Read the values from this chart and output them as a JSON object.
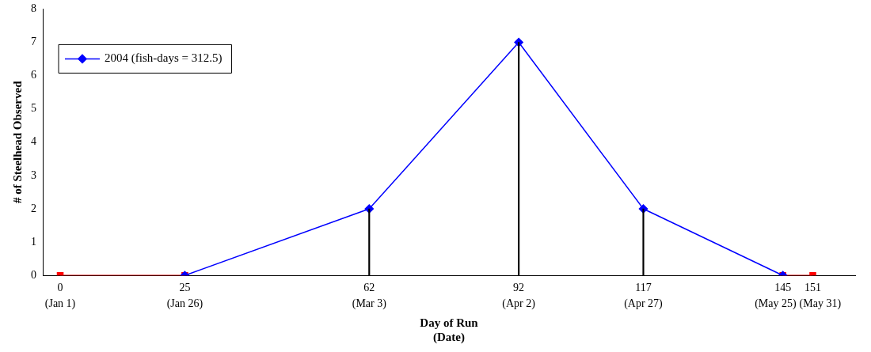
{
  "chart_data": {
    "type": "line",
    "xlabel": "Day of Run\n(Date)",
    "ylabel": "# of Steelhead Observed",
    "series": [
      {
        "type": "bar",
        "color": "#000000",
        "x": [
          62,
          92,
          117
        ],
        "values": [
          2,
          7,
          2
        ]
      },
      {
        "name": "2004 (fish-days = 312.5)",
        "color": "#0000ff",
        "x": [
          25,
          62,
          92,
          117,
          145
        ],
        "values": [
          0,
          2,
          7,
          2,
          0
        ],
        "marker": "diamond"
      },
      {
        "color": "#ff0000",
        "x": [
          0,
          25
        ],
        "values": [
          0,
          0
        ],
        "marker": "square"
      },
      {
        "color": "#ff0000",
        "x": [
          145,
          151
        ],
        "values": [
          0,
          0
        ],
        "marker": "square"
      }
    ],
    "xlim": [
      -3.5,
      159.5
    ],
    "xticks": [
      0,
      25,
      62,
      92,
      117,
      145,
      151
    ],
    "annotations": [
      "(Jan 1)",
      "(Jan 26)",
      "(Mar 3)",
      "(Apr 2)",
      "(Apr 27)",
      "(May 25)",
      "(May 31)"
    ],
    "ylim": [
      0,
      8
    ],
    "yticks": [
      0,
      1,
      2,
      3,
      4,
      5,
      6,
      7,
      8
    ],
    "grid": false,
    "legend": "top left"
  }
}
